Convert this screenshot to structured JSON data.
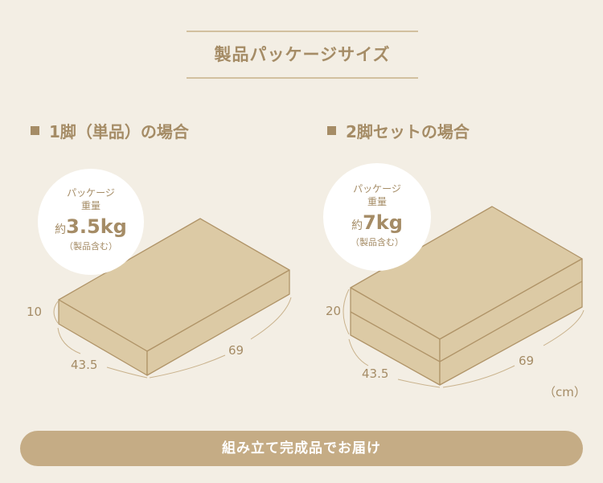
{
  "title": "製品パッケージサイズ",
  "sections": [
    {
      "heading": "1脚（単品）の場合",
      "bubble": {
        "line1": "パッケージ",
        "line2": "重量",
        "prefix": "約",
        "weight": "3.5kg",
        "note": "（製品含む）"
      },
      "dims": {
        "height": "10",
        "depth": "43.5",
        "width": "69"
      }
    },
    {
      "heading": "2脚セットの場合",
      "bubble": {
        "line1": "パッケージ",
        "line2": "重量",
        "prefix": "約",
        "weight": "7kg",
        "note": "（製品含む）"
      },
      "dims": {
        "height": "20",
        "depth": "43.5",
        "width": "69"
      }
    }
  ],
  "unit": "（cm）",
  "button": "組み立て完成品でお届け",
  "colors": {
    "background": "#f3eee4",
    "box": "#dccaa5",
    "accent": "#a58c66",
    "button": "#c5ac85"
  }
}
